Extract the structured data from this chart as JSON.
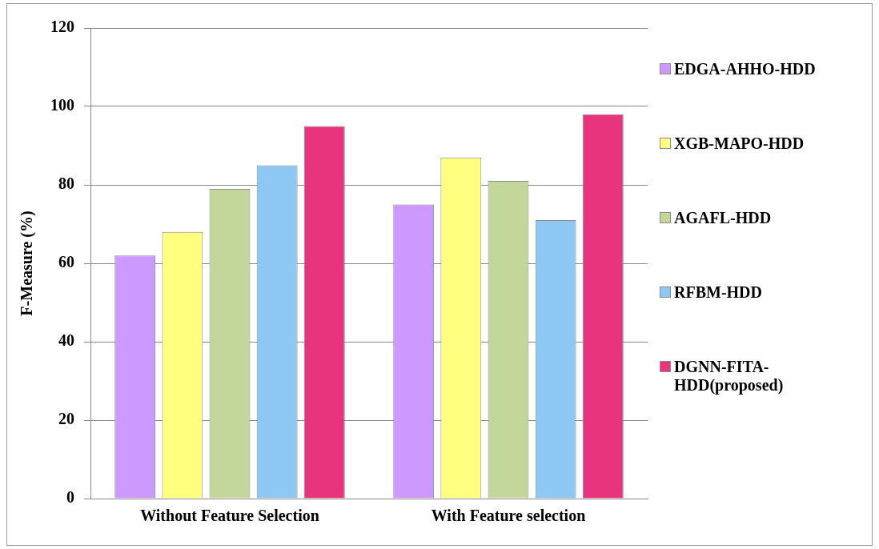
{
  "chart_data": {
    "type": "bar",
    "ylabel": "F-Measure (%)",
    "categories": [
      "Without Feature Selection",
      "With Feature selection"
    ],
    "series": [
      {
        "name": "EDGA-AHHO-HDD",
        "color": "#cc99ff",
        "values": [
          62,
          75
        ]
      },
      {
        "name": "XGB-MAPO-HDD",
        "color": "#ffff80",
        "values": [
          68,
          87
        ]
      },
      {
        "name": "AGAFL-HDD",
        "color": "#c4d79b",
        "values": [
          79,
          81
        ]
      },
      {
        "name": "RFBM-HDD",
        "color": "#8dc8f5",
        "values": [
          85,
          71
        ]
      },
      {
        "name": "DGNN-FITA-HDD(proposed)",
        "color": "#e8347c",
        "values": [
          95,
          98
        ]
      }
    ],
    "ylim": [
      0,
      120
    ],
    "yticks": [
      0,
      20,
      40,
      60,
      80,
      100,
      120
    ],
    "grid": "y",
    "legend": "right"
  }
}
